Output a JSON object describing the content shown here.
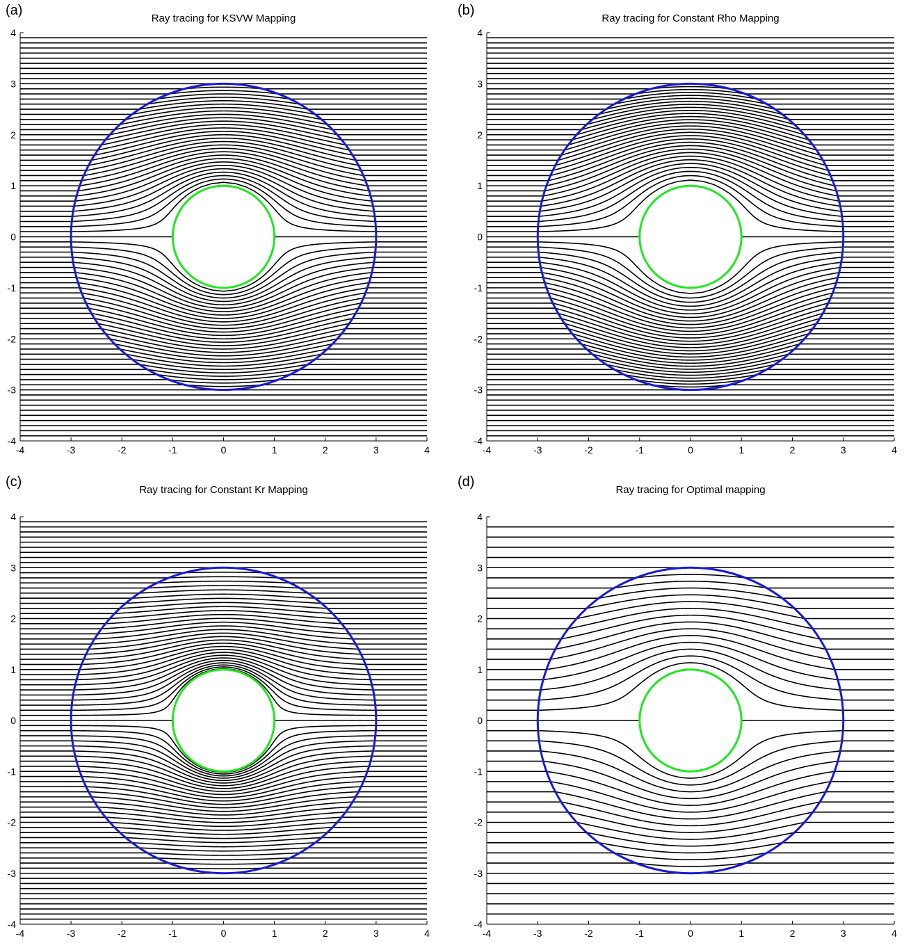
{
  "colors": {
    "ray": "#000000",
    "outer_circle": "#1a1ad6",
    "inner_circle": "#1ee81e",
    "axis": "#000000"
  },
  "chart_data": [
    {
      "label": "(a)",
      "type": "line",
      "title": "Ray tracing for KSVW Mapping",
      "xlim": [
        -4,
        4
      ],
      "ylim": [
        -4,
        4
      ],
      "xticks": [
        -4,
        -3,
        -2,
        -1,
        0,
        1,
        2,
        3,
        4
      ],
      "yticks": [
        -4,
        -3,
        -2,
        -1,
        0,
        1,
        2,
        3,
        4
      ],
      "grid": false,
      "ray_spacing": 0.1,
      "ray_count": 79,
      "series": [
        {
          "shape": "circle",
          "center": [
            0,
            0
          ],
          "radius": 3,
          "color": "blue"
        },
        {
          "shape": "circle",
          "center": [
            0,
            0
          ],
          "radius": 1,
          "color": "green"
        }
      ],
      "mapping": "ksvw"
    },
    {
      "label": "(b)",
      "type": "line",
      "title": "Ray tracing for Constant Rho Mapping",
      "xlim": [
        -4,
        4
      ],
      "ylim": [
        -4,
        4
      ],
      "xticks": [
        -4,
        -3,
        -2,
        -1,
        0,
        1,
        2,
        3,
        4
      ],
      "yticks": [
        -4,
        -3,
        -2,
        -1,
        0,
        1,
        2,
        3,
        4
      ],
      "grid": false,
      "ray_spacing": 0.1,
      "ray_count": 79,
      "series": [
        {
          "shape": "circle",
          "center": [
            0,
            0
          ],
          "radius": 3,
          "color": "blue"
        },
        {
          "shape": "circle",
          "center": [
            0,
            0
          ],
          "radius": 1,
          "color": "green"
        }
      ],
      "mapping": "constant-rho"
    },
    {
      "label": "(c)",
      "type": "line",
      "title": "Ray tracing for Constant Kr Mapping",
      "xlim": [
        -4,
        4
      ],
      "ylim": [
        -4,
        4
      ],
      "xticks": [
        -4,
        -3,
        -2,
        -1,
        0,
        1,
        2,
        3,
        4
      ],
      "yticks": [
        -4,
        -3,
        -2,
        -1,
        0,
        1,
        2,
        3,
        4
      ],
      "grid": false,
      "ray_spacing": 0.1,
      "ray_count": 79,
      "series": [
        {
          "shape": "circle",
          "center": [
            0,
            0
          ],
          "radius": 3,
          "color": "blue"
        },
        {
          "shape": "circle",
          "center": [
            0,
            0
          ],
          "radius": 1,
          "color": "green"
        }
      ],
      "mapping": "constant-kr"
    },
    {
      "label": "(d)",
      "type": "line",
      "title": "Ray tracing for Optimal mapping",
      "xlim": [
        -4,
        4
      ],
      "ylim": [
        -4,
        4
      ],
      "xticks": [
        -4,
        -3,
        -2,
        -1,
        0,
        1,
        2,
        3,
        4
      ],
      "yticks": [
        -4,
        -3,
        -2,
        -1,
        0,
        1,
        2,
        3,
        4
      ],
      "grid": false,
      "ray_spacing": 0.2,
      "ray_count": 39,
      "series": [
        {
          "shape": "circle",
          "center": [
            0,
            0
          ],
          "radius": 3,
          "color": "blue"
        },
        {
          "shape": "circle",
          "center": [
            0,
            0
          ],
          "radius": 1,
          "color": "green"
        }
      ],
      "mapping": "optimal"
    }
  ]
}
